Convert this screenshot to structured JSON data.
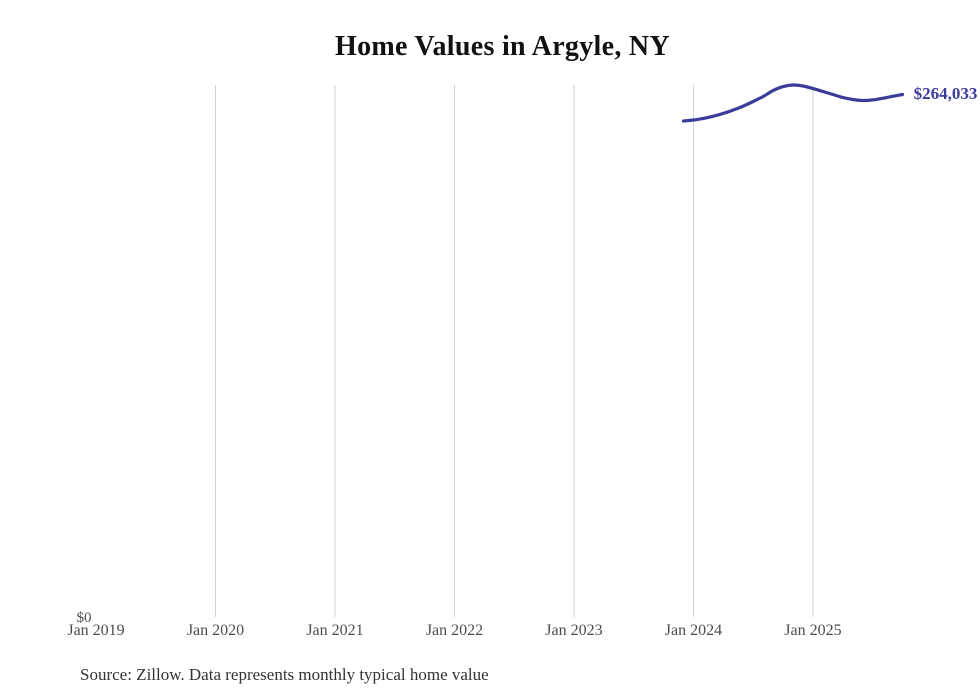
{
  "header": {
    "title": "Home Values in Argyle, NY"
  },
  "footer": {
    "source_note": "Source: Zillow. Data represents monthly typical home value"
  },
  "colors": {
    "line": "#3b3b9a",
    "end_label": "#3b3b9a",
    "gridline": "#d2d2d2",
    "axis_text": "#4d4d4d",
    "title_text": "#111111",
    "source_text": "#333333",
    "background": "#ffffff"
  },
  "chart_data": {
    "type": "line",
    "title": "Home Values in Argyle, NY",
    "xlabel": "",
    "ylabel": "",
    "x_tick_labels": [
      "Jan 2019",
      "Jan 2020",
      "Jan 2021",
      "Jan 2022",
      "Jan 2023",
      "Jan 2024",
      "Jan 2025"
    ],
    "gridlines": "vertical at each year Jan 2020 through Jan 2025",
    "legend": "none",
    "y_zero_label": "$0",
    "end_label": "$264,033",
    "y_axis": {
      "min": 0,
      "unit": "USD"
    },
    "x": [
      "2023-12",
      "2024-01",
      "2024-02",
      "2024-03",
      "2024-04",
      "2024-05",
      "2024-06",
      "2024-07",
      "2024-08",
      "2024-09",
      "2024-10",
      "2024-11",
      "2024-12",
      "2025-01",
      "2025-02",
      "2025-03",
      "2025-04",
      "2025-05",
      "2025-06",
      "2025-07",
      "2025-08",
      "2025-09",
      "2025-10"
    ],
    "series": [
      {
        "name": "Typical home value",
        "values": [
          250700,
          251200,
          252000,
          253100,
          254500,
          256200,
          258200,
          260500,
          263000,
          266000,
          268000,
          268800,
          268300,
          267000,
          265500,
          264000,
          262500,
          261500,
          261000,
          261300,
          262100,
          263100,
          264033
        ]
      }
    ]
  }
}
